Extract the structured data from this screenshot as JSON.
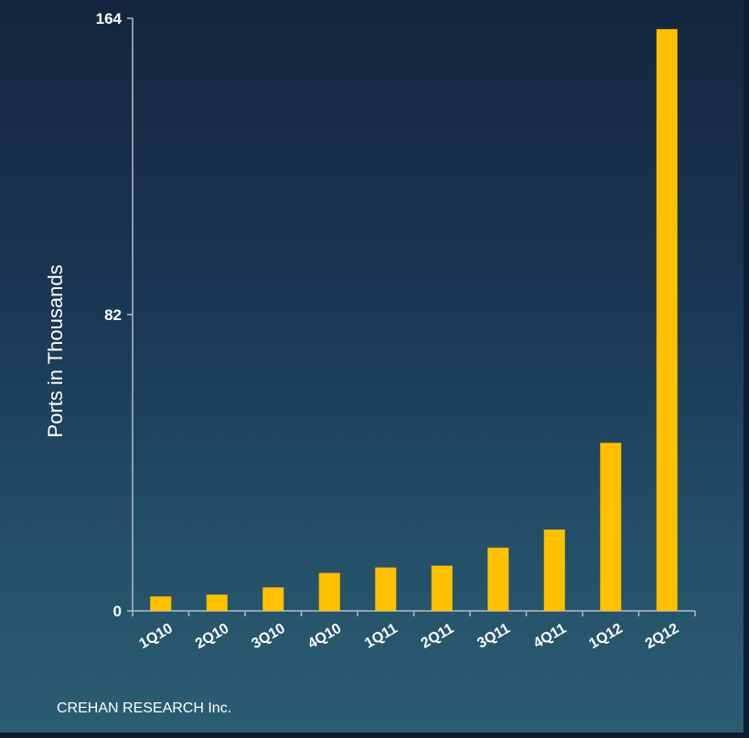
{
  "chart_data": {
    "type": "bar",
    "categories": [
      "1Q10",
      "2Q10",
      "3Q10",
      "4Q10",
      "1Q11",
      "2Q11",
      "3Q11",
      "4Q11",
      "1Q12",
      "2Q12"
    ],
    "values": [
      4,
      4.5,
      6.5,
      10.5,
      12,
      12.5,
      17.5,
      22.5,
      46.5,
      161
    ],
    "title": "",
    "xlabel": "",
    "ylabel": "Ports in Thousands",
    "ylim": [
      0,
      164
    ],
    "yticks": [
      "0",
      "82",
      "164"
    ],
    "grid": false,
    "bar_color": "#ffc000"
  },
  "source": "CREHAN RESEARCH Inc.",
  "colors": {
    "axis": "#b4bcc8",
    "text": "#ffffff"
  }
}
